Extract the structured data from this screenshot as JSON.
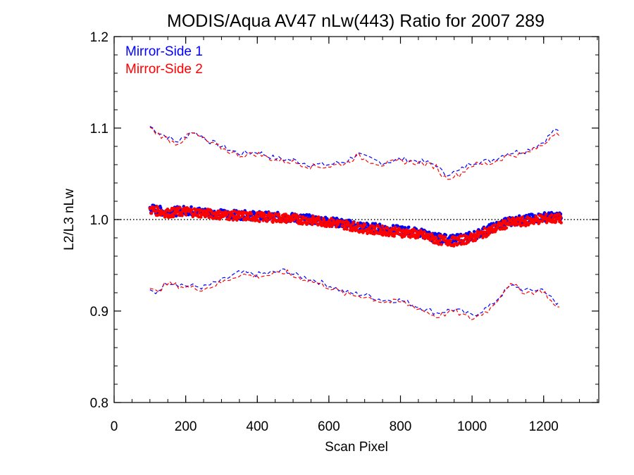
{
  "chart_data": {
    "type": "line",
    "title": "MODIS/Aqua AV47 nLw(443) Ratio for 2007 289",
    "xlabel": "Scan Pixel",
    "ylabel": "L2/L3 nLw",
    "xlim": [
      0,
      1354
    ],
    "ylim": [
      0.8,
      1.2
    ],
    "x_ticks": [
      0,
      200,
      400,
      600,
      800,
      1000,
      1200
    ],
    "x_tick_labels": [
      "0",
      "200",
      "400",
      "600",
      "800",
      "1000",
      "1200"
    ],
    "y_ticks": [
      0.8,
      0.9,
      1.0,
      1.1,
      1.2
    ],
    "y_tick_labels": [
      "0.8",
      "0.9",
      "1.0",
      "1.1",
      "1.2"
    ],
    "x_minor_step": 50,
    "y_minor_step": 0.02,
    "reference_line": {
      "y": 1.0,
      "style": "dotted",
      "color": "#000000"
    },
    "legend": {
      "placement": "top-left",
      "entries": [
        {
          "label": "Mirror-Side 1",
          "color": "#0000ff"
        },
        {
          "label": "Mirror-Side 2",
          "color": "#ff0000"
        }
      ]
    },
    "series": [
      {
        "name": "Mirror-Side 1",
        "color": "#0000ff",
        "mean_points": {
          "x": [
            100,
            150,
            200,
            250,
            300,
            350,
            400,
            450,
            500,
            550,
            600,
            650,
            700,
            750,
            800,
            850,
            900,
            950,
            1000,
            1050,
            1100,
            1150,
            1200,
            1250
          ],
          "y": [
            1.012,
            1.008,
            1.01,
            1.008,
            1.006,
            1.005,
            1.004,
            1.003,
            1.002,
            1.0,
            0.998,
            0.995,
            0.992,
            0.99,
            0.988,
            0.986,
            0.98,
            0.978,
            0.982,
            0.99,
            0.998,
            1.0,
            1.003,
            1.003
          ]
        },
        "upper_band": {
          "x": [
            100,
            125,
            150,
            175,
            200,
            215,
            240,
            270,
            300,
            350,
            400,
            450,
            500,
            550,
            600,
            650,
            680,
            700,
            750,
            800,
            850,
            900,
            920,
            960,
            1000,
            1050,
            1100,
            1150,
            1200,
            1235,
            1250
          ],
          "y": [
            1.102,
            1.095,
            1.09,
            1.085,
            1.09,
            1.097,
            1.092,
            1.085,
            1.08,
            1.072,
            1.074,
            1.067,
            1.065,
            1.06,
            1.06,
            1.064,
            1.072,
            1.068,
            1.062,
            1.066,
            1.064,
            1.06,
            1.05,
            1.052,
            1.063,
            1.064,
            1.073,
            1.075,
            1.085,
            1.1,
            1.09
          ]
        },
        "lower_band": {
          "x": [
            100,
            115,
            150,
            200,
            250,
            300,
            350,
            400,
            450,
            480,
            500,
            550,
            600,
            650,
            700,
            750,
            800,
            850,
            900,
            950,
            1000,
            1050,
            1100,
            1120,
            1150,
            1200,
            1240,
            1250
          ],
          "y": [
            0.922,
            0.92,
            0.932,
            0.928,
            0.926,
            0.933,
            0.942,
            0.94,
            0.942,
            0.945,
            0.94,
            0.935,
            0.928,
            0.92,
            0.918,
            0.912,
            0.912,
            0.905,
            0.898,
            0.902,
            0.895,
            0.905,
            0.925,
            0.928,
            0.922,
            0.924,
            0.905,
            0.918
          ]
        }
      },
      {
        "name": "Mirror-Side 2",
        "color": "#ff0000",
        "mean_points": {
          "x": [
            100,
            150,
            200,
            250,
            300,
            350,
            400,
            450,
            500,
            550,
            600,
            650,
            700,
            750,
            800,
            850,
            900,
            950,
            1000,
            1050,
            1100,
            1150,
            1200,
            1250
          ],
          "y": [
            1.011,
            1.007,
            1.009,
            1.007,
            1.005,
            1.004,
            1.003,
            1.002,
            1.001,
            0.999,
            0.997,
            0.994,
            0.99,
            0.988,
            0.986,
            0.984,
            0.978,
            0.976,
            0.98,
            0.988,
            0.996,
            0.998,
            1.001,
            1.001
          ]
        },
        "upper_band": {
          "x": [
            100,
            125,
            150,
            175,
            200,
            215,
            240,
            270,
            300,
            350,
            400,
            450,
            500,
            550,
            600,
            650,
            680,
            700,
            750,
            800,
            850,
            900,
            920,
            960,
            1000,
            1050,
            1100,
            1150,
            1200,
            1235,
            1250
          ],
          "y": [
            1.1,
            1.093,
            1.088,
            1.083,
            1.089,
            1.095,
            1.09,
            1.083,
            1.078,
            1.07,
            1.072,
            1.065,
            1.063,
            1.058,
            1.058,
            1.062,
            1.07,
            1.066,
            1.06,
            1.064,
            1.062,
            1.058,
            1.046,
            1.048,
            1.06,
            1.061,
            1.07,
            1.072,
            1.082,
            1.098,
            1.088
          ]
        },
        "lower_band": {
          "x": [
            100,
            115,
            150,
            200,
            250,
            300,
            350,
            400,
            450,
            480,
            500,
            550,
            600,
            650,
            700,
            750,
            800,
            850,
            900,
            950,
            1000,
            1050,
            1100,
            1120,
            1150,
            1200,
            1240,
            1250
          ],
          "y": [
            0.923,
            0.921,
            0.93,
            0.926,
            0.924,
            0.931,
            0.94,
            0.938,
            0.94,
            0.943,
            0.938,
            0.933,
            0.926,
            0.918,
            0.916,
            0.91,
            0.91,
            0.903,
            0.894,
            0.9,
            0.891,
            0.902,
            0.928,
            0.927,
            0.92,
            0.922,
            0.9,
            0.916
          ]
        }
      }
    ]
  }
}
